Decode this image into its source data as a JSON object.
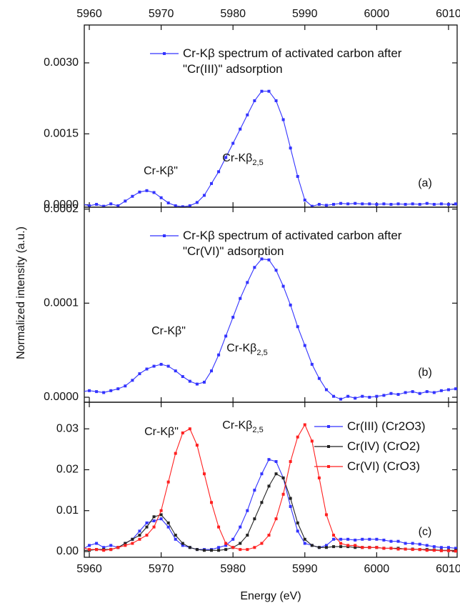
{
  "chart_data": [
    {
      "type": "line",
      "x": [
        5959,
        5960,
        5961,
        5962,
        5963,
        5964,
        5965,
        5966,
        5967,
        5968,
        5969,
        5970,
        5971,
        5972,
        5973,
        5974,
        5975,
        5976,
        5977,
        5978,
        5979,
        5980,
        5981,
        5982,
        5983,
        5984,
        5985,
        5986,
        5987,
        5988,
        5989,
        5990,
        5991,
        5992,
        5993,
        5994,
        5995,
        5996,
        5997,
        5998,
        5999,
        6000,
        6001,
        6002,
        6003,
        6004,
        6005,
        6006,
        6007,
        6008,
        6009,
        6010,
        6011
      ],
      "xlim": [
        5959.3,
        6011.2
      ],
      "xticks": [
        5960,
        5970,
        5980,
        5990,
        6000,
        6010
      ],
      "ylim": [
        -5e-05,
        0.0038
      ],
      "yticks": [
        {
          "value": 0,
          "label": "0.0000"
        },
        {
          "value": 0.0015,
          "label": "0.0015"
        },
        {
          "value": 0.003,
          "label": "0.0030"
        }
      ],
      "series": [
        {
          "name": "Cr-Kβ spectrum of activated carbon after \"Cr(III)\" adsorption",
          "color": "#3333ff",
          "values": [
            2e-05,
            -2e-05,
            1e-05,
            -3e-05,
            2e-05,
            -2e-05,
            8e-05,
            0.00018,
            0.00027,
            0.0003,
            0.00026,
            0.00015,
            4e-05,
            -2e-05,
            -4e-05,
            -2e-05,
            5e-05,
            0.0002,
            0.00045,
            0.0007,
            0.001,
            0.0013,
            0.0016,
            0.0019,
            0.0022,
            0.0024,
            0.0024,
            0.0022,
            0.0018,
            0.0012,
            0.0006,
            0.0001,
            -3e-05,
            1e-05,
            -1e-05,
            1e-05,
            3e-05,
            2e-05,
            3e-05,
            2e-05,
            2e-05,
            1e-05,
            2e-05,
            1e-05,
            2e-05,
            1e-05,
            2e-05,
            1e-05,
            3e-05,
            1e-05,
            2e-05,
            1e-05,
            2e-05
          ]
        }
      ],
      "annotations": [
        {
          "text": "Cr-Kβ\""
        },
        {
          "text": "Cr-Kβ",
          "sub": "2,5"
        },
        {
          "text": "(a)"
        }
      ]
    },
    {
      "type": "line",
      "x": [
        5959,
        5960,
        5961,
        5962,
        5963,
        5964,
        5965,
        5966,
        5967,
        5968,
        5969,
        5970,
        5971,
        5972,
        5973,
        5974,
        5975,
        5976,
        5977,
        5978,
        5979,
        5980,
        5981,
        5982,
        5983,
        5984,
        5985,
        5986,
        5987,
        5988,
        5989,
        5990,
        5991,
        5992,
        5993,
        5994,
        5995,
        5996,
        5997,
        5998,
        5999,
        6000,
        6001,
        6002,
        6003,
        6004,
        6005,
        6006,
        6007,
        6008,
        6009,
        6010,
        6011
      ],
      "xlim": [
        5959.3,
        6011.2
      ],
      "xticks": [
        5960,
        5970,
        5980,
        5990,
        6000,
        6010
      ],
      "ylim": [
        -5.3e-06,
        0.000202
      ],
      "yticks": [
        {
          "value": 0,
          "label": "0.0000"
        },
        {
          "value": 0.0001,
          "label": "0.0001"
        },
        {
          "value": 0.0002,
          "label": "0.0002"
        }
      ],
      "ylabel": "Normalized intensity (a.u.)",
      "series": [
        {
          "name": "Cr-Kβ spectrum of activated carbon after \"Cr(VI)\" adsorption",
          "color": "#3333ff",
          "values": [
            6e-06,
            7e-06,
            6e-06,
            5e-06,
            7e-06,
            9e-06,
            1.2e-05,
            1.8e-05,
            2.5e-05,
            3e-05,
            3.3e-05,
            3.5e-05,
            3.3e-05,
            2.8e-05,
            2.2e-05,
            1.7e-05,
            1.4e-05,
            1.6e-05,
            2.8e-05,
            4.5e-05,
            6.5e-05,
            8.5e-05,
            0.000105,
            0.000122,
            0.000138,
            0.000147,
            0.000146,
            0.000135,
            0.000118,
            9.8e-05,
            7.5e-05,
            5.5e-05,
            3.5e-05,
            2e-05,
            8e-06,
            1e-06,
            -2e-06,
            1e-06,
            -1e-06,
            1e-06,
            0,
            1e-06,
            2e-06,
            4e-06,
            3e-06,
            5e-06,
            6e-06,
            4e-06,
            6e-06,
            5e-06,
            7e-06,
            8e-06,
            9e-06
          ]
        }
      ],
      "annotations": [
        {
          "text": "Cr-Kβ\""
        },
        {
          "text": "Cr-Kβ",
          "sub": "2,5"
        },
        {
          "text": "(b)"
        }
      ]
    },
    {
      "type": "line",
      "x": [
        5959,
        5960,
        5961,
        5962,
        5963,
        5964,
        5965,
        5966,
        5967,
        5968,
        5969,
        5970,
        5971,
        5972,
        5973,
        5974,
        5975,
        5976,
        5977,
        5978,
        5979,
        5980,
        5981,
        5982,
        5983,
        5984,
        5985,
        5986,
        5987,
        5988,
        5989,
        5990,
        5991,
        5992,
        5993,
        5994,
        5995,
        5996,
        5997,
        5998,
        5999,
        6000,
        6001,
        6002,
        6003,
        6004,
        6005,
        6006,
        6007,
        6008,
        6009,
        6010,
        6011
      ],
      "xlim": [
        5959.3,
        6011.2
      ],
      "xticks": [
        5960,
        5970,
        5980,
        5990,
        6000,
        6010
      ],
      "ylim": [
        -0.0014,
        0.0365
      ],
      "yticks": [
        {
          "value": 0,
          "label": "0.00"
        },
        {
          "value": 0.01,
          "label": "0.01"
        },
        {
          "value": 0.02,
          "label": "0.02"
        },
        {
          "value": 0.03,
          "label": "0.03"
        }
      ],
      "xlabel": "Energy (eV)",
      "series": [
        {
          "name": "Cr(III) (Cr2O3)",
          "color": "#3333ff",
          "values": [
            0.0005,
            0.0015,
            0.002,
            0.001,
            0.0015,
            0.001,
            0.002,
            0.003,
            0.005,
            0.007,
            0.0075,
            0.008,
            0.006,
            0.003,
            0.0015,
            0.001,
            0.0005,
            0.0005,
            0.0005,
            0.001,
            0.0015,
            0.003,
            0.006,
            0.01,
            0.015,
            0.019,
            0.0225,
            0.022,
            0.018,
            0.011,
            0.005,
            0.002,
            0.0015,
            0.001,
            0.0015,
            0.003,
            0.003,
            0.003,
            0.0028,
            0.003,
            0.003,
            0.003,
            0.0028,
            0.0025,
            0.0025,
            0.002,
            0.002,
            0.0018,
            0.0015,
            0.0012,
            0.001,
            0.001,
            0.0008
          ]
        },
        {
          "name": "Cr(IV) (CrO2)",
          "color": "#222222",
          "values": [
            0.0003,
            0.0003,
            0.0005,
            0.0005,
            0.0005,
            0.001,
            0.002,
            0.003,
            0.004,
            0.006,
            0.0085,
            0.009,
            0.007,
            0.004,
            0.002,
            0.001,
            0.0005,
            0.0003,
            0.0003,
            0.0003,
            0.0005,
            0.001,
            0.002,
            0.004,
            0.008,
            0.012,
            0.016,
            0.019,
            0.018,
            0.013,
            0.007,
            0.003,
            0.0015,
            0.001,
            0.001,
            0.0012,
            0.0012,
            0.0012,
            0.001,
            0.001,
            0.001,
            0.001,
            0.0008,
            0.0008,
            0.0008,
            0.0006,
            0.0006,
            0.0005,
            0.0005,
            0.0004,
            0.0003,
            0.0003,
            0.0003
          ]
        },
        {
          "name": "Cr(VI) (CrO3)",
          "color": "#ff2020",
          "values": [
            0.001,
            0.0005,
            0.0005,
            0.0003,
            0.0005,
            0.001,
            0.0015,
            0.002,
            0.003,
            0.004,
            0.006,
            0.01,
            0.017,
            0.024,
            0.029,
            0.03,
            0.026,
            0.019,
            0.012,
            0.006,
            0.002,
            0.001,
            0.0005,
            0.0005,
            0.001,
            0.002,
            0.004,
            0.008,
            0.014,
            0.022,
            0.028,
            0.031,
            0.027,
            0.018,
            0.009,
            0.004,
            0.002,
            0.0015,
            0.0015,
            0.001,
            0.001,
            0.001,
            0.0008,
            0.0008,
            0.0006,
            0.0006,
            0.0005,
            0.0005,
            0.0003,
            0.0003,
            0.0002,
            0.0002,
            0.0001
          ]
        }
      ],
      "annotations": [
        {
          "text": "Cr-Kβ\""
        },
        {
          "text": "Cr-Kβ",
          "sub": "2,5"
        },
        {
          "text": "(c)"
        }
      ]
    }
  ]
}
